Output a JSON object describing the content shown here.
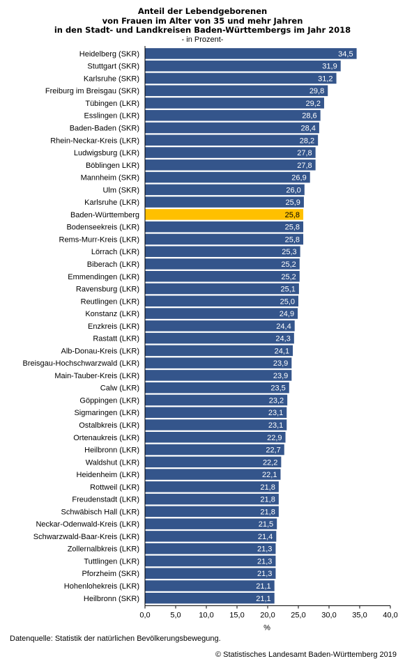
{
  "chart_data": {
    "type": "bar",
    "orientation": "horizontal",
    "title": [
      "Anteil der Lebendgeborenen",
      "von Frauen im Alter von 35 und mehr Jahren",
      "in den Stadt- und Landkreisen Baden-Württembergs im Jahr 2018"
    ],
    "subtitle": "- in Prozent-",
    "xlabel": "%",
    "xlim": [
      0,
      40
    ],
    "xticks": [
      "0,0",
      "5,0",
      "10,0",
      "15,0",
      "20,0",
      "25,0",
      "30,0",
      "35,0",
      "40,0"
    ],
    "grid": false,
    "bar_color": "#34558b",
    "highlight_color": "#ffc000",
    "highlight_category": "Baden-Württemberg",
    "categories": [
      "Heidelberg (SKR)",
      "Stuttgart (SKR)",
      "Karlsruhe (SKR)",
      "Freiburg im Breisgau (SKR)",
      "Tübingen (LKR)",
      "Esslingen (LKR)",
      "Baden-Baden (SKR)",
      "Rhein-Neckar-Kreis (LKR)",
      "Ludwigsburg (LKR)",
      "Böblingen LKR)",
      "Mannheim (SKR)",
      "Ulm (SKR)",
      "Karlsruhe (LKR)",
      "Baden-Württemberg",
      "Bodenseekreis (LKR)",
      "Rems-Murr-Kreis  (LKR)",
      "Lörrach (LKR)",
      "Biberach (LKR)",
      "Emmendingen (LKR)",
      "Ravensburg (LKR)",
      "Reutlingen (LKR)",
      "Konstanz (LKR)",
      "Enzkreis (LKR)",
      "Rastatt (LKR)",
      "Alb-Donau-Kreis (LKR)",
      "Breisgau-Hochschwarzwald (LKR)",
      "Main-Tauber-Kreis (LKR)",
      "Calw (LKR)",
      "Göppingen (LKR)",
      "Sigmaringen (LKR)",
      "Ostalbkreis (LKR)",
      "Ortenaukreis (LKR)",
      "Heilbronn (LKR)",
      "Waldshut (LKR)",
      "Heidenheim (LKR)",
      "Rottweil (LKR)",
      "Freudenstadt (LKR)",
      "Schwäbisch Hall (LKR)",
      "Neckar-Odenwald-Kreis (LKR)",
      "Schwarzwald-Baar-Kreis (LKR)",
      "Zollernalbkreis (LKR)",
      "Tuttlingen (LKR)",
      "Pforzheim (SKR)",
      "Hohenlohekreis (LKR)",
      "Heilbronn (SKR)"
    ],
    "values": [
      34.5,
      31.9,
      31.2,
      29.8,
      29.2,
      28.6,
      28.4,
      28.2,
      27.8,
      27.8,
      26.9,
      26.0,
      25.9,
      25.8,
      25.8,
      25.8,
      25.3,
      25.2,
      25.2,
      25.1,
      25.0,
      24.9,
      24.4,
      24.3,
      24.1,
      23.9,
      23.9,
      23.5,
      23.2,
      23.1,
      23.1,
      22.9,
      22.7,
      22.2,
      22.1,
      21.8,
      21.8,
      21.8,
      21.5,
      21.4,
      21.3,
      21.3,
      21.3,
      21.1,
      21.1
    ],
    "value_labels": [
      "34,5",
      "31,9",
      "31,2",
      "29,8",
      "29,2",
      "28,6",
      "28,4",
      "28,2",
      "27,8",
      "27,8",
      "26,9",
      "26,0",
      "25,9",
      "25,8",
      "25,8",
      "25,8",
      "25,3",
      "25,2",
      "25,2",
      "25,1",
      "25,0",
      "24,9",
      "24,4",
      "24,3",
      "24,1",
      "23,9",
      "23,9",
      "23,5",
      "23,2",
      "23,1",
      "23,1",
      "22,9",
      "22,7",
      "22,2",
      "22,1",
      "21,8",
      "21,8",
      "21,8",
      "21,5",
      "21,4",
      "21,3",
      "21,3",
      "21,3",
      "21,1",
      "21,1"
    ]
  },
  "footer": {
    "source": "Datenquelle: Statistik der natürlichen Bevölkerungsbewegung.",
    "copyright": "© Statistisches Landesamt Baden-Württemberg 2019"
  }
}
